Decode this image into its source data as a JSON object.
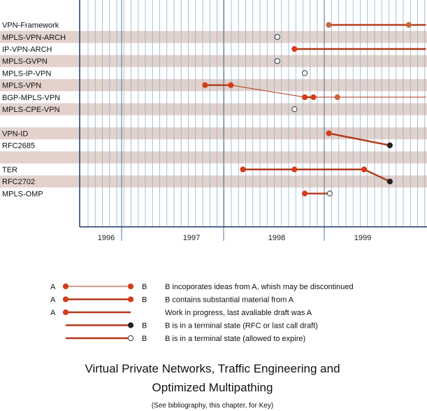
{
  "rows": [
    {
      "label": "VPN-Framework",
      "band": false
    },
    {
      "label": "MPLS-VPN-ARCH",
      "band": true
    },
    {
      "label": "IP-VPN-ARCH",
      "band": false
    },
    {
      "label": "MPLS-GVPN",
      "band": true
    },
    {
      "label": "MPLS-IP-VPN",
      "band": false
    },
    {
      "label": "MPLS-VPN",
      "band": true
    },
    {
      "label": "BGP-MPLS-VPN",
      "band": false
    },
    {
      "label": "MPLS-CPE-VPN",
      "band": true
    },
    {
      "label": "",
      "band": false
    },
    {
      "label": "VPN-ID",
      "band": true
    },
    {
      "label": "RFC2685",
      "band": false
    },
    {
      "label": "",
      "band": true
    },
    {
      "label": "TER",
      "band": false
    },
    {
      "label": "RFC2702",
      "band": true
    },
    {
      "label": "MPLS-OMP",
      "band": false
    }
  ],
  "years": [
    {
      "label": "1996",
      "value": 1996.0
    },
    {
      "label": "1997",
      "value": 1997.0
    },
    {
      "label": "1998",
      "value": 1998.0
    },
    {
      "label": "1999",
      "value": 1999.0
    }
  ],
  "timeline": [
    {
      "row": 0,
      "style": "thick",
      "from": 1998.72,
      "to": 1999.65,
      "dots": [
        {
          "t": 1998.72,
          "kind": "filled-orange"
        },
        {
          "t": 1999.65,
          "kind": "filled-orange"
        }
      ]
    },
    {
      "row": 0,
      "style": "thick",
      "from": 1999.65,
      "to": 1999.85,
      "dots": []
    },
    {
      "row": 1,
      "style": "none",
      "from": null,
      "to": null,
      "dots": [
        {
          "t": 1998.12,
          "kind": "open"
        }
      ]
    },
    {
      "row": 2,
      "style": "thick",
      "from": 1998.32,
      "to": 1999.85,
      "dots": [
        {
          "t": 1998.32,
          "kind": "filled"
        }
      ]
    },
    {
      "row": 3,
      "style": "none",
      "from": null,
      "to": null,
      "dots": [
        {
          "t": 1998.12,
          "kind": "open"
        }
      ]
    },
    {
      "row": 4,
      "style": "none",
      "from": null,
      "to": null,
      "dots": [
        {
          "t": 1998.44,
          "kind": "open"
        }
      ]
    },
    {
      "row": 5,
      "style": "thick",
      "from": 1997.28,
      "to": 1997.58,
      "dots": [
        {
          "t": 1997.28,
          "kind": "filled"
        },
        {
          "t": 1997.58,
          "kind": "filled"
        }
      ]
    },
    {
      "row": 6,
      "style": "thick",
      "from": 1998.44,
      "to": 1998.54,
      "dots": [
        {
          "t": 1998.44,
          "kind": "filled"
        },
        {
          "t": 1998.54,
          "kind": "filled"
        }
      ]
    },
    {
      "row": 6,
      "style": "thin",
      "from": 1998.54,
      "to": 1999.85,
      "dots": [
        {
          "t": 1998.82,
          "kind": "filled-orange"
        }
      ]
    },
    {
      "row": 7,
      "style": "none",
      "from": null,
      "to": null,
      "dots": [
        {
          "t": 1998.32,
          "kind": "open"
        }
      ]
    },
    {
      "row": 12,
      "style": "thick",
      "from": 1997.72,
      "to": 1999.13,
      "dots": [
        {
          "t": 1997.72,
          "kind": "filled"
        },
        {
          "t": 1998.32,
          "kind": "filled"
        },
        {
          "t": 1999.13,
          "kind": "filled"
        }
      ]
    },
    {
      "row": 14,
      "style": "thick",
      "from": 1998.44,
      "to": 1998.73,
      "dots": [
        {
          "t": 1998.44,
          "kind": "filled"
        },
        {
          "t": 1998.73,
          "kind": "open"
        }
      ]
    }
  ],
  "connectors": [
    {
      "from_row": 5,
      "from_t": 1997.58,
      "to_row": 6,
      "to_t": 1998.44,
      "style": "thin"
    },
    {
      "from_row": 9,
      "from_t": 1998.72,
      "to_row": 10,
      "to_t": 1999.43,
      "style": "thick",
      "end": "black"
    },
    {
      "from_row": 12,
      "from_t": 1999.13,
      "to_row": 13,
      "to_t": 1999.43,
      "style": "thick",
      "end": "black"
    }
  ],
  "legend": [
    {
      "a": "A",
      "b": "B",
      "style": "thin",
      "start": "filled",
      "end": "filled",
      "text": "B incoporates ideas from A, whish may be discontinued"
    },
    {
      "a": "A",
      "b": "B",
      "style": "thick",
      "start": "filled",
      "end": "filled",
      "text": "B contains substantial material from A"
    },
    {
      "a": "A",
      "b": "",
      "style": "thick",
      "start": "filled",
      "end": "none",
      "text": "Work in progress, last avaliable draft was  A"
    },
    {
      "a": "",
      "b": "B",
      "style": "thick",
      "start": "none",
      "end": "black",
      "text": "B is in a terminal state (RFC or last call draft)"
    },
    {
      "a": "",
      "b": "B",
      "style": "thick",
      "start": "none",
      "end": "open",
      "text": "B is in a terminal state (allowed to expire)"
    }
  ],
  "title_line1": "Virtual Private Networks, Traffic Engineering and",
  "title_line2": "Optimized Multipathing",
  "subtitle": "(See bibliography, this chapter, for Key)",
  "colors": {
    "band": "#e2d2cb",
    "gridline": "#8fb3d0",
    "axis": "#1e3a6e",
    "line": "#b33818",
    "dot": "#d63b1a",
    "dot_orange": "#c7683a",
    "terminal": "#222222"
  }
}
